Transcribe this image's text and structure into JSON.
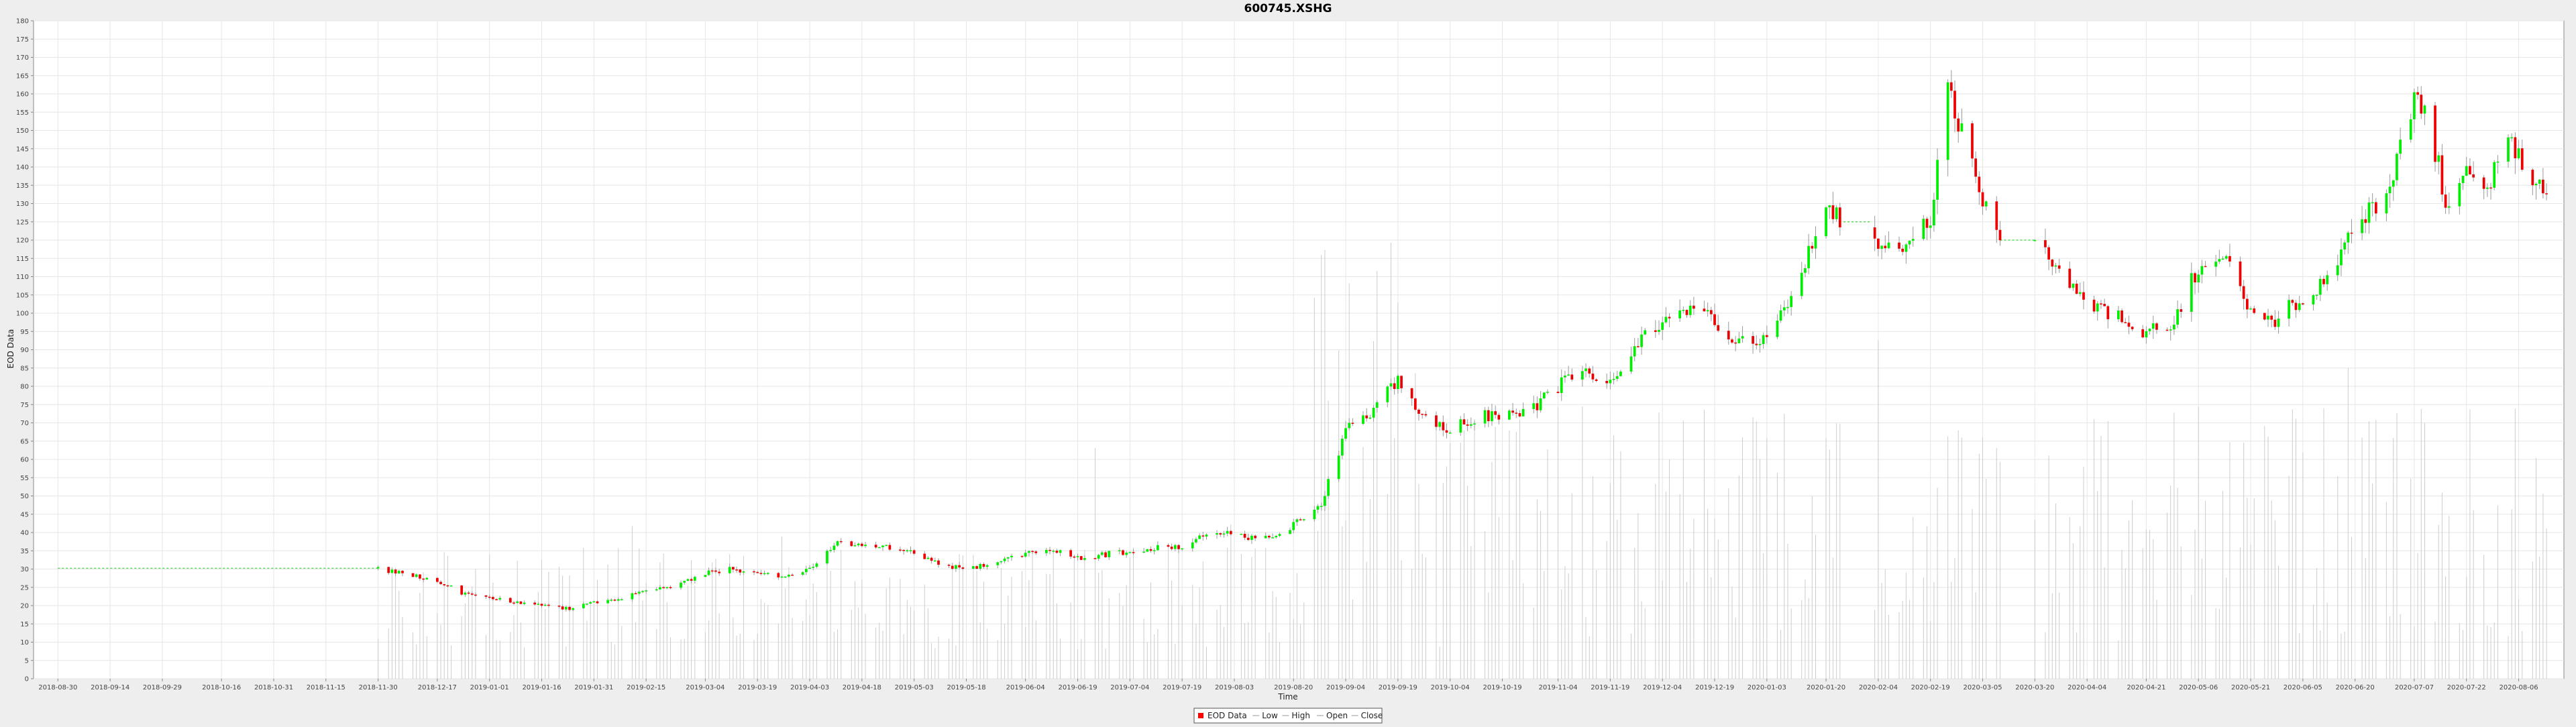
{
  "chart_data": {
    "type": "candlestick",
    "title": "600745.XSHG",
    "xlabel": "Time",
    "ylabel": "EOD Data",
    "ylim": [
      0,
      180
    ],
    "y_ticks": [
      0,
      5,
      10,
      15,
      20,
      25,
      30,
      35,
      40,
      45,
      50,
      55,
      60,
      65,
      70,
      75,
      80,
      85,
      90,
      95,
      100,
      105,
      110,
      115,
      120,
      125,
      130,
      135,
      140,
      145,
      150,
      155,
      160,
      165,
      170,
      175,
      180
    ],
    "x_ticks": [
      "2018-08-30",
      "2018-09-14",
      "2018-09-29",
      "2018-10-16",
      "2018-10-31",
      "2018-11-15",
      "2018-11-30",
      "2018-12-17",
      "2019-01-01",
      "2019-01-16",
      "2019-01-31",
      "2019-02-15",
      "2019-03-04",
      "2019-03-19",
      "2019-04-03",
      "2019-04-18",
      "2019-05-03",
      "2019-05-18",
      "2019-06-04",
      "2019-06-19",
      "2019-07-04",
      "2019-07-19",
      "2019-08-03",
      "2019-08-20",
      "2019-09-04",
      "2019-09-19",
      "2019-10-04",
      "2019-10-19",
      "2019-11-04",
      "2019-11-19",
      "2019-12-04",
      "2019-12-19",
      "2020-01-03",
      "2020-01-20",
      "2020-02-04",
      "2020-02-19",
      "2020-03-05",
      "2020-03-20",
      "2020-04-04",
      "2020-04-21",
      "2020-05-06",
      "2020-05-21",
      "2020-06-05",
      "2020-06-20",
      "2020-07-07",
      "2020-07-22",
      "2020-08-06"
    ],
    "grid": true,
    "legend_position": "bottom-center",
    "legend": [
      {
        "name": "EOD Data",
        "color": "#ff0000"
      },
      {
        "name": "Low",
        "color": "#999999"
      },
      {
        "name": "High",
        "color": "#999999"
      },
      {
        "name": "Open",
        "color": "#999999"
      },
      {
        "name": "Close",
        "color": "#999999"
      }
    ],
    "colors": {
      "up": "#00ee00",
      "down": "#ee0000",
      "volume": "#cccccc",
      "flat": "#55dd55"
    },
    "close_path": [
      [
        "2018-08-30",
        30.2
      ],
      [
        "2018-11-30",
        30.2
      ],
      [
        "2018-12-10",
        28
      ],
      [
        "2018-12-17",
        27
      ],
      [
        "2018-12-25",
        23
      ],
      [
        "2019-01-01",
        22
      ],
      [
        "2019-01-08",
        21
      ],
      [
        "2019-01-16",
        20
      ],
      [
        "2019-01-25",
        19
      ],
      [
        "2019-01-31",
        21
      ],
      [
        "2019-02-08",
        22
      ],
      [
        "2019-02-15",
        24
      ],
      [
        "2019-02-25",
        26
      ],
      [
        "2019-03-04",
        29
      ],
      [
        "2019-03-12",
        30
      ],
      [
        "2019-03-19",
        29
      ],
      [
        "2019-03-26",
        28
      ],
      [
        "2019-04-03",
        30
      ],
      [
        "2019-04-10",
        37
      ],
      [
        "2019-04-18",
        36
      ],
      [
        "2019-04-26",
        36
      ],
      [
        "2019-05-03",
        35
      ],
      [
        "2019-05-10",
        31
      ],
      [
        "2019-05-18",
        30
      ],
      [
        "2019-05-26",
        32
      ],
      [
        "2019-06-04",
        34
      ],
      [
        "2019-06-12",
        35
      ],
      [
        "2019-06-19",
        33
      ],
      [
        "2019-06-27",
        34
      ],
      [
        "2019-07-04",
        35
      ],
      [
        "2019-07-12",
        36
      ],
      [
        "2019-07-19",
        36
      ],
      [
        "2019-07-27",
        41
      ],
      [
        "2019-08-03",
        39
      ],
      [
        "2019-08-10",
        38
      ],
      [
        "2019-08-20",
        42
      ],
      [
        "2019-08-28",
        48
      ],
      [
        "2019-09-04",
        68
      ],
      [
        "2019-09-10",
        72
      ],
      [
        "2019-09-19",
        82
      ],
      [
        "2019-09-26",
        72
      ],
      [
        "2019-10-04",
        68
      ],
      [
        "2019-10-12",
        72
      ],
      [
        "2019-10-19",
        71
      ],
      [
        "2019-10-26",
        73
      ],
      [
        "2019-11-04",
        80
      ],
      [
        "2019-11-12",
        84
      ],
      [
        "2019-11-19",
        82
      ],
      [
        "2019-11-26",
        90
      ],
      [
        "2019-12-04",
        98
      ],
      [
        "2019-12-12",
        102
      ],
      [
        "2019-12-19",
        97
      ],
      [
        "2019-12-26",
        93
      ],
      [
        "2020-01-03",
        92
      ],
      [
        "2020-01-10",
        105
      ],
      [
        "2020-01-20",
        128
      ],
      [
        "2020-01-25",
        125
      ],
      [
        "2020-02-04",
        120
      ],
      [
        "2020-02-10",
        115
      ],
      [
        "2020-02-19",
        125
      ],
      [
        "2020-02-24",
        160
      ],
      [
        "2020-03-01",
        145
      ],
      [
        "2020-03-05",
        130
      ],
      [
        "2020-03-10",
        120
      ],
      [
        "2020-03-20",
        120
      ],
      [
        "2020-03-28",
        108
      ],
      [
        "2020-04-04",
        103
      ],
      [
        "2020-04-12",
        100
      ],
      [
        "2020-04-21",
        95
      ],
      [
        "2020-04-28",
        97
      ],
      [
        "2020-05-06",
        112
      ],
      [
        "2020-05-14",
        115
      ],
      [
        "2020-05-21",
        100
      ],
      [
        "2020-05-28",
        98
      ],
      [
        "2020-06-05",
        105
      ],
      [
        "2020-06-12",
        108
      ],
      [
        "2020-06-20",
        125
      ],
      [
        "2020-06-28",
        130
      ],
      [
        "2020-07-07",
        158
      ],
      [
        "2020-07-12",
        150
      ],
      [
        "2020-07-16",
        130
      ],
      [
        "2020-07-22",
        140
      ],
      [
        "2020-07-28",
        135
      ],
      [
        "2020-08-03",
        150
      ],
      [
        "2020-08-08",
        140
      ],
      [
        "2020-08-14",
        135
      ]
    ],
    "gaps": [
      [
        "2018-08-30",
        "2018-11-30"
      ],
      [
        "2020-03-10",
        "2020-03-20"
      ],
      [
        "2020-01-25",
        "2020-02-02"
      ]
    ]
  }
}
